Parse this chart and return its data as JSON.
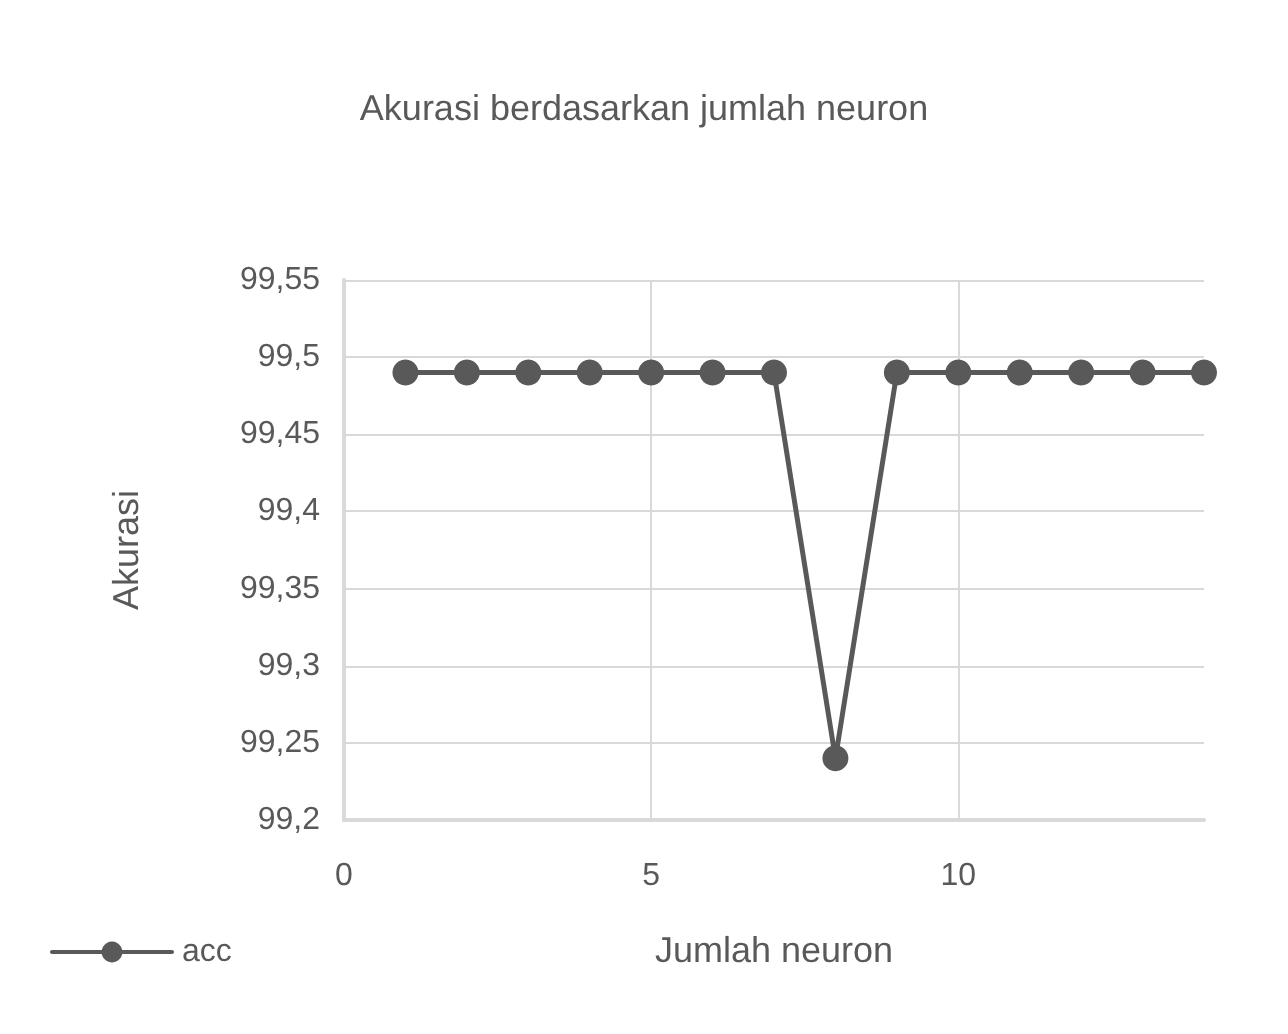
{
  "chart_data": {
    "type": "line",
    "title": "Akurasi berdasarkan jumlah neuron",
    "xlabel": "Jumlah neuron",
    "ylabel": "Akurasi",
    "x": [
      1,
      2,
      3,
      4,
      5,
      6,
      7,
      8,
      9,
      10,
      11,
      12,
      13,
      14
    ],
    "series": [
      {
        "name": "acc",
        "color": "#595959",
        "values": [
          99.49,
          99.49,
          99.49,
          99.49,
          99.49,
          99.49,
          99.49,
          99.24,
          99.49,
          99.49,
          99.49,
          99.49,
          99.49,
          99.49
        ]
      }
    ],
    "xlim": [
      0,
      14
    ],
    "xticks": [
      0,
      5,
      10
    ],
    "ylim": [
      99.2,
      99.55
    ],
    "yticks": [
      {
        "value": 99.2,
        "label": "99,2"
      },
      {
        "value": 99.25,
        "label": "99,25"
      },
      {
        "value": 99.3,
        "label": "99,3"
      },
      {
        "value": 99.35,
        "label": "99,35"
      },
      {
        "value": 99.4,
        "label": "99,4"
      },
      {
        "value": 99.45,
        "label": "99,45"
      },
      {
        "value": 99.5,
        "label": "99,5"
      },
      {
        "value": 99.55,
        "label": "99,55"
      }
    ],
    "grid": true,
    "legend": "bottom left",
    "marker": "circle",
    "line_style": "solid"
  }
}
